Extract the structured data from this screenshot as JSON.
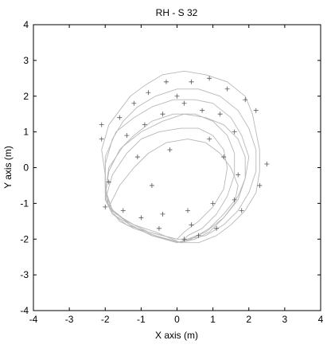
{
  "chart_data": {
    "type": "line",
    "title": "RH - S 32",
    "xlabel": "X axis (m)",
    "ylabel": "Y axis (m)",
    "xlim": [
      -4,
      4
    ],
    "ylim": [
      -4,
      4
    ],
    "xticks": [
      "-4",
      "-3",
      "-2",
      "-1",
      "0",
      "1",
      "2",
      "3",
      "4"
    ],
    "yticks": [
      "-4",
      "-3",
      "-2",
      "-1",
      "0",
      "1",
      "2",
      "3",
      "4"
    ],
    "grid": false,
    "line_color": "#b8b8b8",
    "marker_color": "#555555",
    "series": [
      {
        "x": [
          0.1,
          -0.6,
          -1.2,
          -1.7,
          -2.0,
          -2.0,
          -2.1,
          -1.9,
          -1.6,
          -1.3,
          -0.9,
          -0.4,
          0.2,
          0.8,
          1.4,
          1.9,
          2.1,
          2.2,
          2.3,
          2.3,
          2.2,
          1.9,
          1.5,
          1.1,
          0.6,
          0.1
        ],
        "y": [
          -2.1,
          -1.8,
          -1.6,
          -1.3,
          -0.9,
          -0.2,
          0.5,
          1.2,
          1.6,
          2.0,
          2.3,
          2.6,
          2.7,
          2.6,
          2.4,
          2.0,
          1.5,
          1.0,
          0.5,
          -0.1,
          -0.7,
          -1.2,
          -1.6,
          -1.9,
          -2.1,
          -2.1
        ]
      },
      {
        "x": [
          0.0,
          -0.7,
          -1.3,
          -1.8,
          -2.0,
          -2.0,
          -1.8,
          -1.5,
          -1.1,
          -0.6,
          0.0,
          0.6,
          1.2,
          1.7,
          2.0,
          2.2,
          2.2,
          2.0,
          1.7,
          1.3,
          0.8,
          0.3,
          0.0
        ],
        "y": [
          -2.1,
          -1.9,
          -1.6,
          -1.2,
          -0.6,
          0.1,
          0.8,
          1.3,
          1.7,
          2.0,
          2.2,
          2.2,
          2.0,
          1.6,
          1.1,
          0.5,
          -0.1,
          -0.7,
          -1.2,
          -1.6,
          -1.9,
          -2.0,
          -2.1
        ]
      },
      {
        "x": [
          0.0,
          -0.8,
          -1.4,
          -1.9,
          -2.0,
          -2.0,
          -1.7,
          -1.2,
          -0.7,
          -0.1,
          0.5,
          1.0,
          1.5,
          1.8,
          2.0,
          1.9,
          1.7,
          1.3,
          0.8,
          0.3,
          0.0
        ],
        "y": [
          -2.0,
          -1.8,
          -1.5,
          -1.1,
          -0.5,
          0.3,
          1.0,
          1.4,
          1.7,
          1.9,
          1.9,
          1.8,
          1.4,
          0.9,
          0.3,
          -0.3,
          -0.9,
          -1.4,
          -1.8,
          -2.0,
          -2.0
        ]
      },
      {
        "x": [
          0.1,
          -0.7,
          -1.3,
          -1.8,
          -2.0,
          -1.9,
          -1.6,
          -1.2,
          -0.7,
          -0.1,
          0.5,
          1.0,
          1.4,
          1.6,
          1.6,
          1.4,
          1.1,
          0.7,
          0.3,
          0.1
        ],
        "y": [
          -2.1,
          -1.9,
          -1.6,
          -1.3,
          -0.8,
          -0.1,
          0.5,
          0.9,
          1.3,
          1.5,
          1.5,
          1.3,
          0.9,
          0.4,
          -0.2,
          -0.8,
          -1.3,
          -1.7,
          -1.9,
          -2.1
        ]
      },
      {
        "x": [
          0.0,
          -0.8,
          -1.4,
          -1.8,
          -2.0,
          -1.8,
          -1.4,
          -1.0,
          -0.5,
          0.1,
          0.6,
          1.0,
          1.3,
          1.4,
          1.3,
          1.0,
          0.6,
          0.2,
          0.0
        ],
        "y": [
          -2.0,
          -1.8,
          -1.6,
          -1.3,
          -0.9,
          -0.2,
          0.4,
          0.8,
          1.0,
          1.1,
          1.1,
          0.9,
          0.5,
          0.0,
          -0.6,
          -1.1,
          -1.5,
          -1.8,
          -2.0
        ]
      },
      {
        "x": [
          0.1,
          -0.6,
          -1.2,
          -1.6,
          -1.9,
          -1.6,
          -1.2,
          -0.8,
          -0.3,
          0.3,
          0.8,
          1.2,
          1.5,
          1.7,
          1.6,
          1.3,
          0.9,
          0.5,
          0.1
        ],
        "y": [
          -2.1,
          -1.9,
          -1.7,
          -1.5,
          -1.1,
          -0.5,
          0.0,
          0.4,
          0.7,
          0.8,
          0.7,
          0.4,
          0.0,
          -0.5,
          -1.0,
          -1.4,
          -1.8,
          -2.0,
          -2.1
        ]
      },
      {
        "x": [
          0.0,
          -0.7,
          -1.3,
          -1.8,
          -2.0,
          -1.9,
          -1.5,
          -1.0,
          -0.4,
          0.2,
          0.8,
          1.3,
          1.7,
          1.9,
          1.9,
          1.7,
          1.3,
          0.9,
          0.4,
          0.0
        ],
        "y": [
          -2.1,
          -1.9,
          -1.6,
          -1.2,
          -0.7,
          0.0,
          0.6,
          1.0,
          1.3,
          1.5,
          1.4,
          1.2,
          0.8,
          0.3,
          -0.3,
          -0.8,
          -1.3,
          -1.7,
          -2.0,
          -2.1
        ]
      }
    ],
    "markers": {
      "x": [
        -2.1,
        -2.1,
        -1.6,
        -1.2,
        -0.8,
        -0.3,
        0.0,
        0.4,
        0.9,
        1.4,
        1.9,
        2.2,
        2.5,
        2.3,
        1.8,
        1.1,
        0.6,
        0.2,
        -0.5,
        -1.0,
        -1.5,
        -2.0,
        1.6,
        1.2,
        0.7,
        0.2,
        -0.4,
        -0.9,
        -1.4,
        -1.1,
        -0.7,
        0.9,
        1.3,
        1.7,
        1.6,
        0.4,
        -0.4,
        -1.9,
        1.0,
        0.3,
        -0.2
      ],
      "y": [
        0.8,
        1.2,
        1.4,
        1.8,
        2.1,
        2.4,
        2.0,
        2.4,
        2.5,
        2.2,
        1.9,
        1.6,
        0.1,
        -0.5,
        -1.2,
        -1.7,
        -1.9,
        -2.0,
        -1.7,
        -1.4,
        -1.2,
        -1.1,
        1.0,
        1.5,
        1.6,
        1.8,
        1.5,
        1.2,
        0.9,
        0.3,
        -0.5,
        0.8,
        0.3,
        -0.2,
        -0.9,
        -1.6,
        -1.3,
        -0.4,
        -1.0,
        -1.2,
        0.5
      ]
    }
  }
}
